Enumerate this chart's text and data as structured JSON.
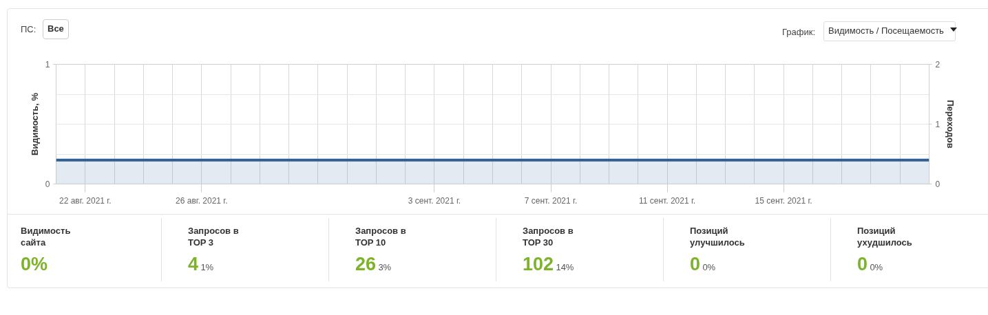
{
  "chart_data": {
    "type": "area",
    "ylabel": "Видимость, %",
    "y2label": "Переходов",
    "x": [
      "2021-08-21",
      "2021-09-20"
    ],
    "series": [
      {
        "color": "#2f5f94",
        "axis": "y2",
        "values": [
          0.4,
          0.4
        ]
      }
    ],
    "xlim": [
      "2021-08-21",
      "2021-09-20"
    ],
    "xticks": [
      {
        "value": "2021-08-22",
        "label": "22 авг. 2021 г."
      },
      {
        "value": "2021-08-23",
        "label": null
      },
      {
        "value": "2021-08-24",
        "label": null
      },
      {
        "value": "2021-08-25",
        "label": null
      },
      {
        "value": "2021-08-26",
        "label": "26 авг. 2021 г."
      },
      {
        "value": "2021-08-27",
        "label": null
      },
      {
        "value": "2021-08-28",
        "label": null
      },
      {
        "value": "2021-08-29",
        "label": null
      },
      {
        "value": "2021-08-30",
        "label": null
      },
      {
        "value": "2021-08-31",
        "label": null
      },
      {
        "value": "2021-09-01",
        "label": null
      },
      {
        "value": "2021-09-02",
        "label": null
      },
      {
        "value": "2021-09-03",
        "label": "3 сент. 2021 г."
      },
      {
        "value": "2021-09-04",
        "label": null
      },
      {
        "value": "2021-09-05",
        "label": null
      },
      {
        "value": "2021-09-06",
        "label": null
      },
      {
        "value": "2021-09-07",
        "label": "7 сент. 2021 г."
      },
      {
        "value": "2021-09-08",
        "label": null
      },
      {
        "value": "2021-09-09",
        "label": null
      },
      {
        "value": "2021-09-10",
        "label": null
      },
      {
        "value": "2021-09-11",
        "label": "11 сент. 2021 г."
      },
      {
        "value": "2021-09-12",
        "label": null
      },
      {
        "value": "2021-09-13",
        "label": null
      },
      {
        "value": "2021-09-14",
        "label": null
      },
      {
        "value": "2021-09-15",
        "label": "15 сент. 2021 г."
      },
      {
        "value": "2021-09-16",
        "label": null
      },
      {
        "value": "2021-09-17",
        "label": null
      },
      {
        "value": "2021-09-18",
        "label": null
      },
      {
        "value": "2021-09-19",
        "label": null
      }
    ],
    "ylim": [
      0,
      1
    ],
    "yticks": [
      0,
      {
        "value": 0.25,
        "label": null
      },
      {
        "value": 0.5,
        "label": null
      },
      {
        "value": 0.75,
        "label": null
      },
      1
    ],
    "y2lim": [
      0,
      2
    ],
    "y2ticks": [
      0,
      1,
      2
    ],
    "grid": true,
    "annotations": [
      "ПС:",
      "Все",
      "График:",
      "Видимость / Посещаемость",
      "Видимость\nсайта",
      "0%",
      "Запросов в\nTOP 3",
      "4",
      "1%",
      "Запросов в\nTOP 10",
      "26",
      "3%",
      "Запросов в\nTOP 30",
      "102",
      "14%",
      "Позиций\nулучшилось",
      "0",
      "0%",
      "Позиций\nухудшилось",
      "0",
      "0%"
    ]
  }
}
